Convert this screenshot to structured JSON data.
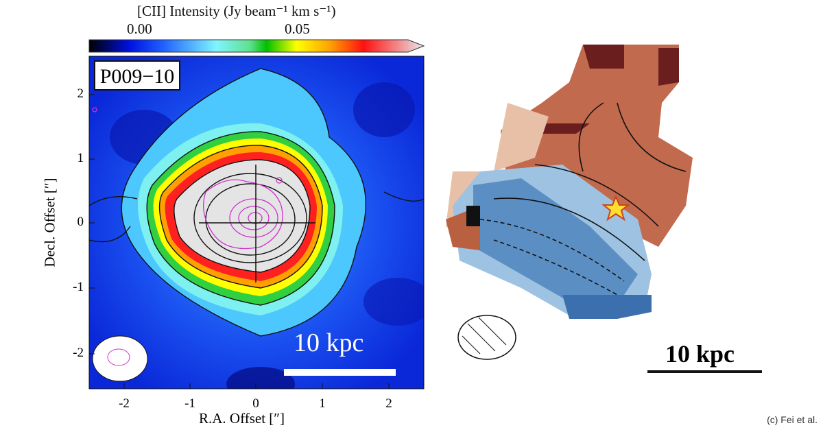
{
  "chart_data": [
    {
      "type": "heatmap",
      "title": "[CII] Intensity (Jy beam⁻¹ km s⁻¹)",
      "colorbar": {
        "ticks": [
          "0.00",
          "0.05"
        ],
        "colormap": [
          "#000000",
          "#0000ff",
          "#7ff5ff",
          "#00c000",
          "#ffff00",
          "#ff0000",
          "#e8e8e8"
        ]
      },
      "panel_label": "P009−10",
      "xlabel": "R.A. Offset [″]",
      "ylabel": "Decl. Offset [″]",
      "xticks": [
        "-2",
        "-1",
        "0",
        "1",
        "2"
      ],
      "yticks": [
        "2",
        "1",
        "0",
        "-1",
        "-2"
      ],
      "xlim": [
        -2.5,
        2.5
      ],
      "ylim": [
        -2.5,
        2.5
      ],
      "scale_bar": "10 kpc"
    },
    {
      "type": "heatmap",
      "description_colors": {
        "redshifted": "#b0553a",
        "blueshifted": "#4a7db8"
      },
      "scale_bar": "10 kpc"
    }
  ],
  "credit": "(c) Fei et al."
}
